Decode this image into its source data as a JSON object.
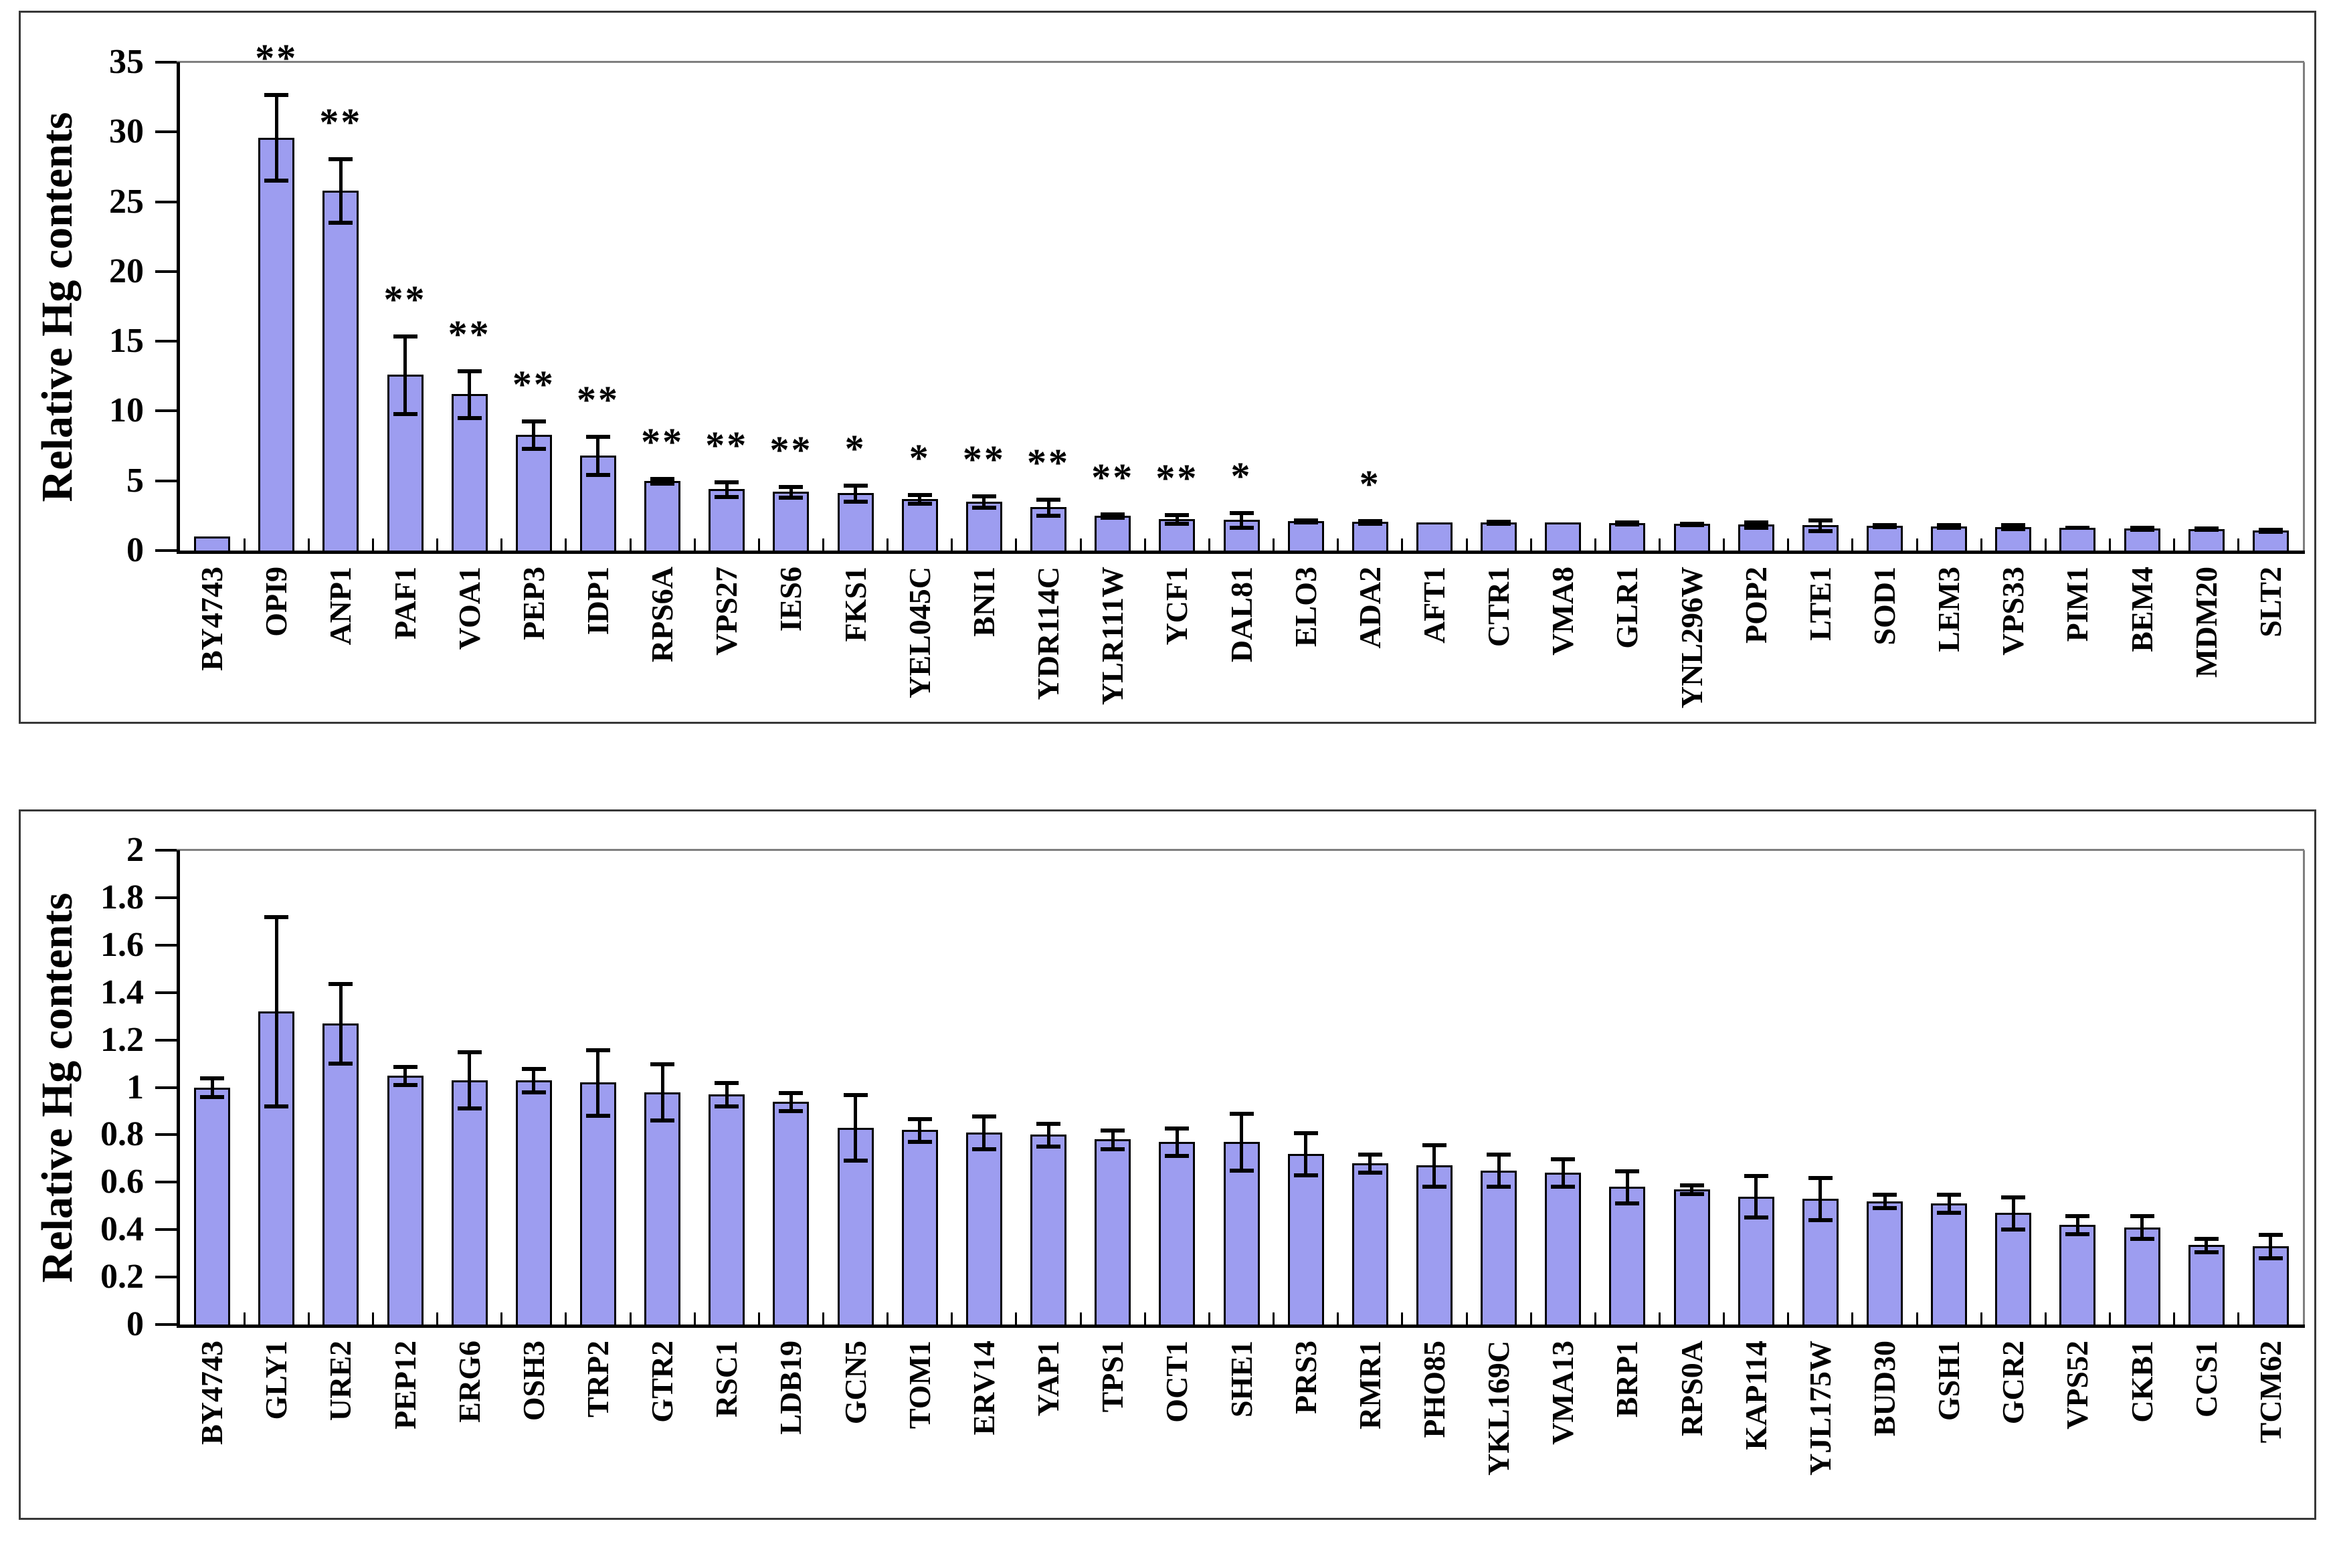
{
  "figure": {
    "background": "#ffffff",
    "y_axis_title": "Relative Hg contents"
  },
  "colors": {
    "bar_fill": "#9d9df0",
    "bar_border": "#000000",
    "error_bar": "#000000",
    "axis": "#000000",
    "plot_border_light": "#7f7f7f",
    "panel_border": "#383838"
  },
  "chart_data": [
    {
      "type": "bar",
      "title": "",
      "xlabel": "",
      "ylabel": "Relative Hg contents",
      "ylim": [
        0,
        35
      ],
      "yticks": [
        "0",
        "5",
        "10",
        "15",
        "20",
        "25",
        "30",
        "35"
      ],
      "grid": false,
      "legend": "none",
      "bar_color": "#9d9df0",
      "error_bars": true,
      "significance_symbols": [
        "*",
        "**"
      ],
      "categories": [
        "BY4743",
        "OPI9",
        "ANP1",
        "PAF1",
        "VOA1",
        "PEP3",
        "IDP1",
        "RPS6A",
        "VPS27",
        "IES6",
        "FKS1",
        "YEL045C",
        "BNI1",
        "YDR114C",
        "YLR111W",
        "YCF1",
        "DAL81",
        "ELO3",
        "ADA2",
        "AFT1",
        "CTR1",
        "VMA8",
        "GLR1",
        "YNL296W",
        "POP2",
        "LTE1",
        "SOD1",
        "LEM3",
        "VPS33",
        "PIM1",
        "BEM4",
        "MDM20",
        "SLT2"
      ],
      "values": [
        1.0,
        29.6,
        25.8,
        12.6,
        11.2,
        8.3,
        6.8,
        5.0,
        4.4,
        4.2,
        4.1,
        3.7,
        3.5,
        3.1,
        2.5,
        2.25,
        2.2,
        2.1,
        2.05,
        2.0,
        2.0,
        2.0,
        1.95,
        1.9,
        1.85,
        1.8,
        1.78,
        1.75,
        1.7,
        1.65,
        1.6,
        1.55,
        1.45
      ],
      "errors": [
        0,
        3.1,
        2.3,
        2.8,
        1.7,
        1.0,
        1.4,
        0.2,
        0.55,
        0.4,
        0.6,
        0.35,
        0.45,
        0.6,
        0.15,
        0.35,
        0.55,
        0.1,
        0.12,
        0,
        0.1,
        0,
        0.1,
        0.06,
        0.2,
        0.4,
        0.1,
        0.1,
        0.15,
        0.04,
        0.1,
        0.08,
        0.1
      ],
      "significance": [
        "",
        "**",
        "**",
        "**",
        "**",
        "**",
        "**",
        "**",
        "**",
        "**",
        "*",
        "*",
        "**",
        "**",
        "**",
        "**",
        "*",
        "",
        "*",
        "",
        "",
        "",
        "",
        "",
        "",
        "",
        "",
        "",
        "",
        "",
        "",
        "",
        ""
      ]
    },
    {
      "type": "bar",
      "title": "",
      "xlabel": "",
      "ylabel": "Relative Hg contents",
      "ylim": [
        0,
        2
      ],
      "yticks": [
        "0",
        "0.2",
        "0.4",
        "0.6",
        "0.8",
        "1",
        "1.2",
        "1.4",
        "1.6",
        "1.8",
        "2"
      ],
      "grid": false,
      "legend": "none",
      "bar_color": "#9d9df0",
      "error_bars": true,
      "significance_symbols": [],
      "categories": [
        "BY4743",
        "GLY1",
        "URE2",
        "PEP12",
        "ERG6",
        "OSH3",
        "TRP2",
        "GTR2",
        "RSC1",
        "LDB19",
        "GCN5",
        "TOM1",
        "ERV14",
        "YAP1",
        "TPS1",
        "OCT1",
        "SHE1",
        "PRS3",
        "RMR1",
        "PHO85",
        "YKL169C",
        "VMA13",
        "BRP1",
        "RPS0A",
        "KAP114",
        "YJL175W",
        "BUD30",
        "GSH1",
        "GCR2",
        "VPS52",
        "CKB1",
        "CCS1",
        "TCM62"
      ],
      "values": [
        1.0,
        1.32,
        1.27,
        1.05,
        1.03,
        1.03,
        1.02,
        0.98,
        0.97,
        0.94,
        0.83,
        0.82,
        0.81,
        0.8,
        0.78,
        0.77,
        0.77,
        0.72,
        0.68,
        0.67,
        0.65,
        0.64,
        0.58,
        0.57,
        0.54,
        0.53,
        0.52,
        0.51,
        0.47,
        0.42,
        0.41,
        0.335,
        0.33
      ],
      "errors": [
        0.04,
        0.4,
        0.17,
        0.04,
        0.12,
        0.05,
        0.14,
        0.12,
        0.05,
        0.04,
        0.14,
        0.05,
        0.07,
        0.05,
        0.04,
        0.06,
        0.12,
        0.09,
        0.04,
        0.09,
        0.07,
        0.06,
        0.07,
        0.02,
        0.09,
        0.09,
        0.03,
        0.04,
        0.07,
        0.04,
        0.05,
        0.03,
        0.05
      ],
      "significance": [
        "",
        "",
        "",
        "",
        "",
        "",
        "",
        "",
        "",
        "",
        "",
        "",
        "",
        "",
        "",
        "",
        "",
        "",
        "",
        "",
        "",
        "",
        "",
        "",
        "",
        "",
        "",
        "",
        "",
        "",
        "",
        "",
        ""
      ]
    }
  ]
}
